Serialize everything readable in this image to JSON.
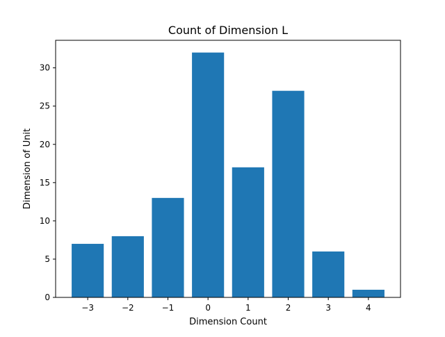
{
  "chart_data": {
    "type": "bar",
    "title": "Count of Dimension L",
    "xlabel": "Dimension Count",
    "ylabel": "Dimension of Unit",
    "categories": [
      "−3",
      "−2",
      "−1",
      "0",
      "1",
      "2",
      "3",
      "4"
    ],
    "x": [
      -3,
      -2,
      -1,
      0,
      1,
      2,
      3,
      4
    ],
    "values": [
      7,
      8,
      13,
      32,
      17,
      27,
      6,
      1
    ],
    "xlim": [
      -3.8,
      4.8
    ],
    "ylim": [
      0,
      33.6
    ],
    "yticks": [
      0,
      5,
      10,
      15,
      20,
      25,
      30
    ],
    "bar_color": "#1f77b4",
    "grid": false,
    "legend": "none"
  }
}
